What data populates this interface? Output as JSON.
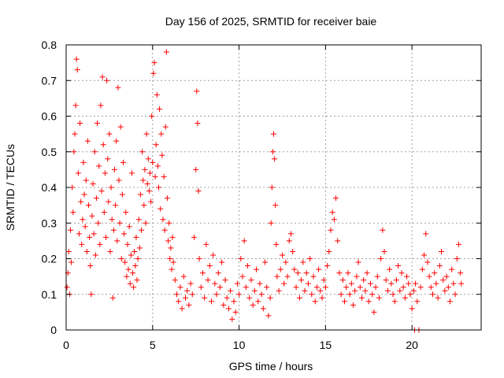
{
  "chart_data": {
    "type": "scatter",
    "title": "Day 156 of 2025, SRMTID for receiver baie",
    "xlabel": "GPS time / hours",
    "ylabel": "SRMTID / TECUs",
    "xlim": [
      0,
      24
    ],
    "ylim": [
      0,
      0.8
    ],
    "xticks": [
      0,
      5,
      10,
      15,
      20
    ],
    "xtick_labels": [
      "0",
      "5",
      "10",
      "15",
      "20"
    ],
    "yticks": [
      0,
      0.1,
      0.2,
      0.3,
      0.4,
      0.5,
      0.6,
      0.7,
      0.8
    ],
    "ytick_labels": [
      "0",
      "0.1",
      "0.2",
      "0.3",
      "0.4",
      "0.5",
      "0.6",
      "0.7",
      "0.8"
    ],
    "grid": true,
    "marker": "+",
    "color": "#ff0000",
    "series": [
      {
        "name": "SRMTID",
        "points": [
          [
            0.05,
            0.12
          ],
          [
            0.1,
            0.16
          ],
          [
            0.15,
            0.22
          ],
          [
            0.2,
            0.1
          ],
          [
            0.25,
            0.28
          ],
          [
            0.3,
            0.19
          ],
          [
            0.35,
            0.4
          ],
          [
            0.4,
            0.33
          ],
          [
            0.45,
            0.5
          ],
          [
            0.5,
            0.55
          ],
          [
            0.55,
            0.63
          ],
          [
            0.6,
            0.76
          ],
          [
            0.65,
            0.73
          ],
          [
            0.7,
            0.44
          ],
          [
            0.75,
            0.27
          ],
          [
            0.8,
            0.58
          ],
          [
            0.85,
            0.36
          ],
          [
            0.9,
            0.24
          ],
          [
            0.95,
            0.31
          ],
          [
            1.0,
            0.47
          ],
          [
            1.05,
            0.38
          ],
          [
            1.1,
            0.29
          ],
          [
            1.15,
            0.42
          ],
          [
            1.2,
            0.22
          ],
          [
            1.25,
            0.53
          ],
          [
            1.3,
            0.35
          ],
          [
            1.35,
            0.26
          ],
          [
            1.4,
            0.18
          ],
          [
            1.45,
            0.1
          ],
          [
            1.5,
            0.32
          ],
          [
            1.55,
            0.41
          ],
          [
            1.6,
            0.27
          ],
          [
            1.65,
            0.5
          ],
          [
            1.7,
            0.21
          ],
          [
            1.75,
            0.37
          ],
          [
            1.8,
            0.58
          ],
          [
            1.85,
            0.3
          ],
          [
            1.9,
            0.46
          ],
          [
            1.95,
            0.24
          ],
          [
            2.0,
            0.63
          ],
          [
            2.05,
            0.39
          ],
          [
            2.1,
            0.71
          ],
          [
            2.15,
            0.52
          ],
          [
            2.2,
            0.33
          ],
          [
            2.25,
            0.44
          ],
          [
            2.3,
            0.26
          ],
          [
            2.35,
            0.7
          ],
          [
            2.4,
            0.48
          ],
          [
            2.45,
            0.36
          ],
          [
            2.5,
            0.55
          ],
          [
            2.55,
            0.22
          ],
          [
            2.6,
            0.4
          ],
          [
            2.65,
            0.31
          ],
          [
            2.7,
            0.09
          ],
          [
            2.75,
            0.28
          ],
          [
            2.8,
            0.45
          ],
          [
            2.85,
            0.35
          ],
          [
            2.9,
            0.53
          ],
          [
            2.95,
            0.25
          ],
          [
            3.0,
            0.68
          ],
          [
            3.05,
            0.42
          ],
          [
            3.1,
            0.3
          ],
          [
            3.15,
            0.57
          ],
          [
            3.2,
            0.2
          ],
          [
            3.25,
            0.38
          ],
          [
            3.3,
            0.47
          ],
          [
            3.35,
            0.27
          ],
          [
            3.4,
            0.19
          ],
          [
            3.45,
            0.33
          ],
          [
            3.5,
            0.15
          ],
          [
            3.55,
            0.24
          ],
          [
            3.6,
            0.17
          ],
          [
            3.65,
            0.29
          ],
          [
            3.7,
            0.13
          ],
          [
            3.75,
            0.21
          ],
          [
            3.8,
            0.44
          ],
          [
            3.85,
            0.16
          ],
          [
            3.9,
            0.12
          ],
          [
            3.95,
            0.22
          ],
          [
            4.0,
            0.18
          ],
          [
            4.05,
            0.26
          ],
          [
            4.1,
            0.14
          ],
          [
            4.15,
            0.2
          ],
          [
            4.2,
            0.31
          ],
          [
            4.25,
            0.23
          ],
          [
            4.3,
            0.38
          ],
          [
            4.35,
            0.28
          ],
          [
            4.4,
            0.5
          ],
          [
            4.45,
            0.42
          ],
          [
            4.5,
            0.35
          ],
          [
            4.55,
            0.45
          ],
          [
            4.6,
            0.3
          ],
          [
            4.65,
            0.55
          ],
          [
            4.7,
            0.41
          ],
          [
            4.75,
            0.48
          ],
          [
            4.8,
            0.39
          ],
          [
            4.85,
            0.44
          ],
          [
            4.9,
            0.36
          ],
          [
            4.95,
            0.6
          ],
          [
            5.0,
            0.47
          ],
          [
            5.05,
            0.72
          ],
          [
            5.1,
            0.75
          ],
          [
            5.15,
            0.43
          ],
          [
            5.2,
            0.52
          ],
          [
            5.25,
            0.66
          ],
          [
            5.3,
            0.46
          ],
          [
            5.35,
            0.4
          ],
          [
            5.4,
            0.62
          ],
          [
            5.45,
            0.34
          ],
          [
            5.5,
            0.55
          ],
          [
            5.55,
            0.49
          ],
          [
            5.6,
            0.31
          ],
          [
            5.65,
            0.43
          ],
          [
            5.7,
            0.28
          ],
          [
            5.75,
            0.57
          ],
          [
            5.8,
            0.78
          ],
          [
            5.85,
            0.37
          ],
          [
            5.9,
            0.25
          ],
          [
            5.95,
            0.3
          ],
          [
            6.0,
            0.2
          ],
          [
            6.05,
            0.23
          ],
          [
            6.1,
            0.17
          ],
          [
            6.15,
            0.26
          ],
          [
            6.2,
            0.19
          ],
          [
            6.3,
            0.14
          ],
          [
            6.4,
            0.1
          ],
          [
            6.5,
            0.08
          ],
          [
            6.6,
            0.12
          ],
          [
            6.7,
            0.06
          ],
          [
            6.8,
            0.15
          ],
          [
            6.9,
            0.09
          ],
          [
            7.0,
            0.11
          ],
          [
            7.1,
            0.07
          ],
          [
            7.2,
            0.13
          ],
          [
            7.3,
            0.1
          ],
          [
            7.4,
            0.26
          ],
          [
            7.5,
            0.45
          ],
          [
            7.55,
            0.67
          ],
          [
            7.6,
            0.58
          ],
          [
            7.65,
            0.39
          ],
          [
            7.7,
            0.2
          ],
          [
            7.8,
            0.12
          ],
          [
            7.9,
            0.16
          ],
          [
            8.0,
            0.09
          ],
          [
            8.1,
            0.24
          ],
          [
            8.2,
            0.14
          ],
          [
            8.3,
            0.18
          ],
          [
            8.4,
            0.08
          ],
          [
            8.5,
            0.21
          ],
          [
            8.6,
            0.13
          ],
          [
            8.7,
            0.1
          ],
          [
            8.8,
            0.16
          ],
          [
            8.9,
            0.12
          ],
          [
            9.0,
            0.19
          ],
          [
            9.1,
            0.07
          ],
          [
            9.2,
            0.14
          ],
          [
            9.3,
            0.09
          ],
          [
            9.4,
            0.06
          ],
          [
            9.5,
            0.11
          ],
          [
            9.6,
            0.03
          ],
          [
            9.7,
            0.08
          ],
          [
            9.8,
            0.05
          ],
          [
            9.9,
            0.13
          ],
          [
            10.0,
            0.1
          ],
          [
            10.1,
            0.2
          ],
          [
            10.2,
            0.15
          ],
          [
            10.3,
            0.25
          ],
          [
            10.4,
            0.12
          ],
          [
            10.5,
            0.18
          ],
          [
            10.6,
            0.09
          ],
          [
            10.7,
            0.14
          ],
          [
            10.8,
            0.07
          ],
          [
            10.9,
            0.11
          ],
          [
            11.0,
            0.17
          ],
          [
            11.1,
            0.08
          ],
          [
            11.2,
            0.13
          ],
          [
            11.3,
            0.1
          ],
          [
            11.4,
            0.06
          ],
          [
            11.5,
            0.19
          ],
          [
            11.6,
            0.12
          ],
          [
            11.7,
            0.04
          ],
          [
            11.8,
            0.09
          ],
          [
            11.85,
            0.3
          ],
          [
            11.9,
            0.4
          ],
          [
            11.95,
            0.5
          ],
          [
            12.0,
            0.55
          ],
          [
            12.05,
            0.48
          ],
          [
            12.1,
            0.35
          ],
          [
            12.15,
            0.24
          ],
          [
            12.2,
            0.15
          ],
          [
            12.3,
            0.11
          ],
          [
            12.4,
            0.17
          ],
          [
            12.5,
            0.21
          ],
          [
            12.6,
            0.13
          ],
          [
            12.7,
            0.19
          ],
          [
            12.8,
            0.15
          ],
          [
            12.9,
            0.25
          ],
          [
            13.0,
            0.27
          ],
          [
            13.1,
            0.22
          ],
          [
            13.2,
            0.17
          ],
          [
            13.3,
            0.12
          ],
          [
            13.4,
            0.16
          ],
          [
            13.5,
            0.09
          ],
          [
            13.6,
            0.14
          ],
          [
            13.7,
            0.19
          ],
          [
            13.8,
            0.11
          ],
          [
            13.9,
            0.16
          ],
          [
            14.0,
            0.13
          ],
          [
            14.1,
            0.2
          ],
          [
            14.2,
            0.1
          ],
          [
            14.3,
            0.15
          ],
          [
            14.4,
            0.08
          ],
          [
            14.5,
            0.12
          ],
          [
            14.6,
            0.17
          ],
          [
            14.7,
            0.11
          ],
          [
            14.8,
            0.09
          ],
          [
            14.9,
            0.14
          ],
          [
            15.0,
            0.12
          ],
          [
            15.1,
            0.18
          ],
          [
            15.2,
            0.22
          ],
          [
            15.3,
            0.28
          ],
          [
            15.4,
            0.33
          ],
          [
            15.5,
            0.31
          ],
          [
            15.6,
            0.37
          ],
          [
            15.7,
            0.25
          ],
          [
            15.8,
            0.16
          ],
          [
            15.9,
            0.1
          ],
          [
            16.0,
            0.14
          ],
          [
            16.1,
            0.08
          ],
          [
            16.2,
            0.12
          ],
          [
            16.3,
            0.16
          ],
          [
            16.4,
            0.1
          ],
          [
            16.5,
            0.13
          ],
          [
            16.6,
            0.07
          ],
          [
            16.7,
            0.11
          ],
          [
            16.8,
            0.15
          ],
          [
            16.9,
            0.19
          ],
          [
            17.0,
            0.12
          ],
          [
            17.1,
            0.09
          ],
          [
            17.2,
            0.14
          ],
          [
            17.3,
            0.11
          ],
          [
            17.4,
            0.16
          ],
          [
            17.5,
            0.08
          ],
          [
            17.6,
            0.13
          ],
          [
            17.7,
            0.1
          ],
          [
            17.8,
            0.05
          ],
          [
            17.9,
            0.12
          ],
          [
            18.0,
            0.15
          ],
          [
            18.1,
            0.09
          ],
          [
            18.2,
            0.2
          ],
          [
            18.3,
            0.28
          ],
          [
            18.4,
            0.22
          ],
          [
            18.5,
            0.14
          ],
          [
            18.6,
            0.11
          ],
          [
            18.7,
            0.17
          ],
          [
            18.8,
            0.13
          ],
          [
            18.9,
            0.1
          ],
          [
            19.0,
            0.08
          ],
          [
            19.1,
            0.14
          ],
          [
            19.2,
            0.18
          ],
          [
            19.3,
            0.11
          ],
          [
            19.4,
            0.16
          ],
          [
            19.5,
            0.12
          ],
          [
            19.6,
            0.09
          ],
          [
            19.7,
            0.15
          ],
          [
            19.8,
            0.13
          ],
          [
            19.9,
            0.1
          ],
          [
            20.0,
            0.06
          ],
          [
            20.1,
            0.11
          ],
          [
            20.15,
            0.0
          ],
          [
            20.2,
            0.13
          ],
          [
            20.3,
            0.08
          ],
          [
            20.4,
            0.0
          ],
          [
            20.5,
            0.12
          ],
          [
            20.6,
            0.17
          ],
          [
            20.7,
            0.21
          ],
          [
            20.8,
            0.27
          ],
          [
            20.9,
            0.19
          ],
          [
            21.0,
            0.15
          ],
          [
            21.1,
            0.12
          ],
          [
            21.2,
            0.1
          ],
          [
            21.3,
            0.16
          ],
          [
            21.4,
            0.13
          ],
          [
            21.5,
            0.09
          ],
          [
            21.6,
            0.18
          ],
          [
            21.7,
            0.22
          ],
          [
            21.8,
            0.14
          ],
          [
            21.9,
            0.11
          ],
          [
            22.0,
            0.15
          ],
          [
            22.1,
            0.12
          ],
          [
            22.2,
            0.08
          ],
          [
            22.3,
            0.17
          ],
          [
            22.4,
            0.13
          ],
          [
            22.5,
            0.1
          ],
          [
            22.6,
            0.2
          ],
          [
            22.7,
            0.24
          ],
          [
            22.8,
            0.16
          ],
          [
            22.85,
            0.13
          ]
        ]
      }
    ]
  }
}
